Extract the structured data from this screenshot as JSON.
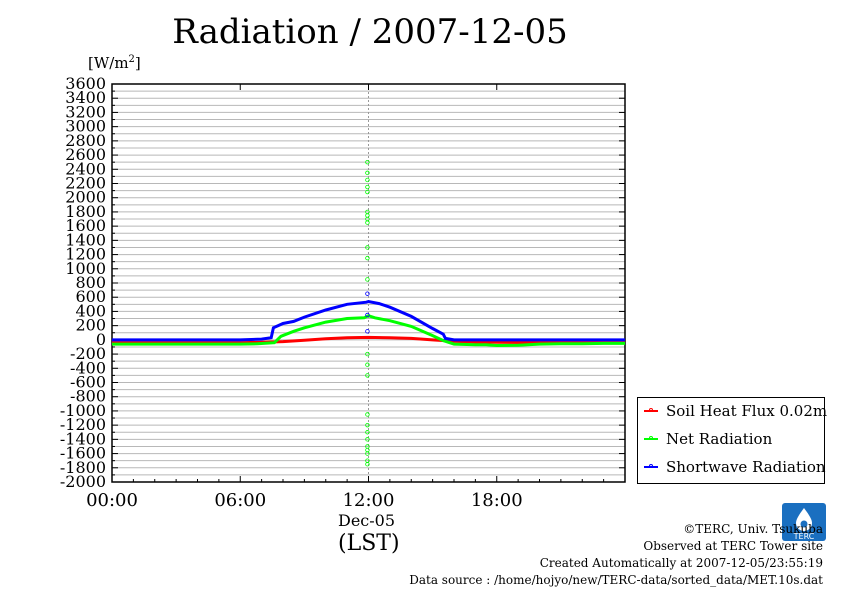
{
  "chart_data": {
    "type": "line",
    "title": "Radiation / 2007-12-05",
    "ylabel": "[W/m2]",
    "ylabel_base": "[W/m",
    "ylabel_sup": "2",
    "ylabel_end": "]",
    "xlabel": "(LST)",
    "date_label": "Dec-05",
    "ylim": [
      -2000,
      3600
    ],
    "y_ticks": [
      3600,
      3400,
      3200,
      3000,
      2800,
      2600,
      2400,
      2200,
      2000,
      1800,
      1600,
      1400,
      1200,
      1000,
      800,
      600,
      400,
      200,
      0,
      -200,
      -400,
      -600,
      -800,
      -1000,
      -1200,
      -1400,
      -1600,
      -1800,
      -2000
    ],
    "y_tick_labels": [
      "3600",
      "3400",
      "3200",
      "3000",
      "2800",
      "2600",
      "2400",
      "2200",
      "2000",
      "1800",
      "1600",
      "1400",
      "1200",
      "1000",
      "800",
      "600",
      "400",
      "200",
      "0",
      "-200",
      "-400",
      "-600",
      "-800",
      "-1000",
      "-1200",
      "-1400",
      "-1600",
      "-1800",
      "-2000"
    ],
    "xlim_hours": [
      0,
      24
    ],
    "x_ticks_hours": [
      0,
      6,
      12,
      18
    ],
    "x_tick_labels": [
      "00:00",
      "06:00",
      "12:00",
      "18:00"
    ],
    "grid": true,
    "legend_position": "right, below plot",
    "series": [
      {
        "name": "Soil Heat Flux 0.02m",
        "color": "#ff0000",
        "x_hours": [
          0,
          6,
          7,
          8,
          9,
          10,
          11,
          12,
          13,
          14,
          15,
          16,
          17,
          18,
          20,
          22,
          24
        ],
        "values": [
          -40,
          -40,
          -35,
          -25,
          -5,
          15,
          30,
          35,
          30,
          20,
          0,
          -20,
          -30,
          -35,
          -38,
          -40,
          -42
        ]
      },
      {
        "name": "Net Radiation",
        "color": "#00ff00",
        "x_hours": [
          0,
          6,
          6.8,
          7.6,
          7.9,
          8.5,
          9,
          10,
          11,
          11.8,
          12,
          12.3,
          13,
          14,
          15,
          15.5,
          16,
          17,
          17.5,
          18,
          19,
          20,
          21,
          22,
          23,
          24
        ],
        "values": [
          -60,
          -60,
          -55,
          -40,
          50,
          120,
          170,
          250,
          300,
          310,
          340,
          310,
          270,
          190,
          60,
          -10,
          -60,
          -70,
          -70,
          -80,
          -75,
          -60,
          -55,
          -55,
          -50,
          -50
        ],
        "spike_points": [
          {
            "x_hours": 11.95,
            "values": [
              2500,
              2350,
              2250,
              2150,
              2080,
              1800,
              1750,
              1700,
              1650,
              1300,
              1150,
              850,
              -200,
              -350,
              -500,
              -1050,
              -1200,
              -1300,
              -1400,
              -1500,
              -1550,
              -1600,
              -1700,
              -1750
            ]
          }
        ]
      },
      {
        "name": "Shortwave Radiation",
        "color": "#0000ff",
        "x_hours": [
          0,
          6,
          7,
          7.45,
          7.55,
          8,
          8.5,
          9,
          10,
          11,
          11.9,
          12,
          12.5,
          13,
          14,
          15,
          15.5,
          15.6,
          16,
          18,
          24
        ],
        "values": [
          0,
          0,
          10,
          30,
          170,
          230,
          260,
          320,
          420,
          500,
          530,
          540,
          510,
          460,
          330,
          160,
          80,
          20,
          0,
          0,
          0
        ],
        "spike_points": [
          {
            "x_hours": 11.95,
            "values": [
              650,
              350,
              120
            ]
          }
        ]
      }
    ]
  },
  "credits": {
    "copyright": "©TERC, Univ. Tsukuba",
    "observed": "Observed at TERC Tower site",
    "created": "Created Automatically at 2007-12-05/23:55:19",
    "source": "Data source : /home/hojyo/new/TERC-data/sorted_data/MET.10s.dat"
  },
  "logo": {
    "icon": "terc-logo-icon",
    "text": "TERC",
    "color": "#1a6fc0"
  }
}
